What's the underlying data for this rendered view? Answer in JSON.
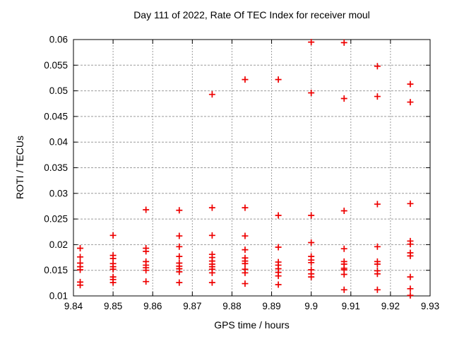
{
  "window": {
    "background": "#ffffff"
  },
  "chart_data": {
    "type": "scatter",
    "title": "Day 111 of 2022, Rate Of TEC Index for receiver moul",
    "xlabel": "GPS time / hours",
    "ylabel": "ROTI / TECUs",
    "xlim": [
      9.84,
      9.93
    ],
    "ylim": [
      0.01,
      0.06
    ],
    "x_tick_values": [
      9.84,
      9.85,
      9.86,
      9.87,
      9.88,
      9.89,
      9.9,
      9.91,
      9.92,
      9.93
    ],
    "x_tick_labels": [
      "9.84",
      "9.85",
      "9.86",
      "9.87",
      "9.88",
      "9.89",
      "9.9",
      "9.91",
      "9.92",
      "9.93"
    ],
    "y_tick_values": [
      0.01,
      0.015,
      0.02,
      0.025,
      0.03,
      0.035,
      0.04,
      0.045,
      0.05,
      0.055,
      0.06
    ],
    "y_tick_labels": [
      "0.01",
      "0.015",
      "0.02",
      "0.025",
      "0.03",
      "0.035",
      "0.04",
      "0.045",
      "0.05",
      "0.055",
      "0.06"
    ],
    "grid": true,
    "legend": null,
    "marker": {
      "shape": "plus",
      "color": "#ee0000",
      "size": 9
    },
    "colors": {
      "grid": "#9b9b9b",
      "border": "#000000",
      "text": "#000000"
    },
    "series": [
      {
        "name": "ROTI",
        "points": [
          [
            9.8417,
            0.0193
          ],
          [
            9.8417,
            0.0176
          ],
          [
            9.8417,
            0.0164
          ],
          [
            9.8417,
            0.0157
          ],
          [
            9.8417,
            0.0151
          ],
          [
            9.8417,
            0.0127
          ],
          [
            9.8417,
            0.0121
          ],
          [
            9.85,
            0.0218
          ],
          [
            9.85,
            0.0179
          ],
          [
            9.85,
            0.0173
          ],
          [
            9.85,
            0.0163
          ],
          [
            9.85,
            0.0157
          ],
          [
            9.85,
            0.0152
          ],
          [
            9.85,
            0.0137
          ],
          [
            9.85,
            0.0132
          ],
          [
            9.85,
            0.0126
          ],
          [
            9.8583,
            0.0268
          ],
          [
            9.8583,
            0.0193
          ],
          [
            9.8583,
            0.0187
          ],
          [
            9.8583,
            0.0167
          ],
          [
            9.8583,
            0.016
          ],
          [
            9.8583,
            0.0155
          ],
          [
            9.8583,
            0.015
          ],
          [
            9.8583,
            0.0128
          ],
          [
            9.8667,
            0.0267
          ],
          [
            9.8667,
            0.0217
          ],
          [
            9.8667,
            0.0196
          ],
          [
            9.8667,
            0.0177
          ],
          [
            9.8667,
            0.0164
          ],
          [
            9.8667,
            0.0158
          ],
          [
            9.8667,
            0.0153
          ],
          [
            9.8667,
            0.0147
          ],
          [
            9.8667,
            0.0126
          ],
          [
            9.875,
            0.0493
          ],
          [
            9.875,
            0.0272
          ],
          [
            9.875,
            0.0218
          ],
          [
            9.875,
            0.0181
          ],
          [
            9.875,
            0.0175
          ],
          [
            9.875,
            0.0168
          ],
          [
            9.875,
            0.0162
          ],
          [
            9.875,
            0.0157
          ],
          [
            9.875,
            0.0152
          ],
          [
            9.875,
            0.0145
          ],
          [
            9.875,
            0.0126
          ],
          [
            9.8833,
            0.0522
          ],
          [
            9.8833,
            0.0272
          ],
          [
            9.8833,
            0.0217
          ],
          [
            9.8833,
            0.019
          ],
          [
            9.8833,
            0.0174
          ],
          [
            9.8833,
            0.0168
          ],
          [
            9.8833,
            0.0163
          ],
          [
            9.8833,
            0.0152
          ],
          [
            9.8833,
            0.0145
          ],
          [
            9.8833,
            0.0124
          ],
          [
            9.8917,
            0.0522
          ],
          [
            9.8917,
            0.0257
          ],
          [
            9.8917,
            0.0195
          ],
          [
            9.8917,
            0.0166
          ],
          [
            9.8917,
            0.016
          ],
          [
            9.8917,
            0.0153
          ],
          [
            9.8917,
            0.0146
          ],
          [
            9.8917,
            0.0139
          ],
          [
            9.8917,
            0.0122
          ],
          [
            9.9,
            0.0595
          ],
          [
            9.9,
            0.0496
          ],
          [
            9.9,
            0.0257
          ],
          [
            9.9,
            0.0204
          ],
          [
            9.9,
            0.0177
          ],
          [
            9.9,
            0.017
          ],
          [
            9.9,
            0.0165
          ],
          [
            9.9,
            0.0151
          ],
          [
            9.9,
            0.0143
          ],
          [
            9.9,
            0.0137
          ],
          [
            9.9083,
            0.0594
          ],
          [
            9.9083,
            0.0485
          ],
          [
            9.9083,
            0.0266
          ],
          [
            9.9083,
            0.0192
          ],
          [
            9.9083,
            0.0167
          ],
          [
            9.9083,
            0.0162
          ],
          [
            9.9083,
            0.0154
          ],
          [
            9.9083,
            0.0151
          ],
          [
            9.9083,
            0.0142
          ],
          [
            9.9083,
            0.0112
          ],
          [
            9.9167,
            0.0548
          ],
          [
            9.9167,
            0.0489
          ],
          [
            9.9167,
            0.0279
          ],
          [
            9.9167,
            0.0196
          ],
          [
            9.9167,
            0.0167
          ],
          [
            9.9167,
            0.0162
          ],
          [
            9.9167,
            0.0149
          ],
          [
            9.9167,
            0.0143
          ],
          [
            9.9167,
            0.0112
          ],
          [
            9.925,
            0.0513
          ],
          [
            9.925,
            0.0478
          ],
          [
            9.925,
            0.028
          ],
          [
            9.925,
            0.0207
          ],
          [
            9.925,
            0.0201
          ],
          [
            9.925,
            0.0184
          ],
          [
            9.925,
            0.0178
          ],
          [
            9.925,
            0.0137
          ],
          [
            9.925,
            0.0114
          ],
          [
            9.925,
            0.0101
          ]
        ]
      }
    ]
  }
}
